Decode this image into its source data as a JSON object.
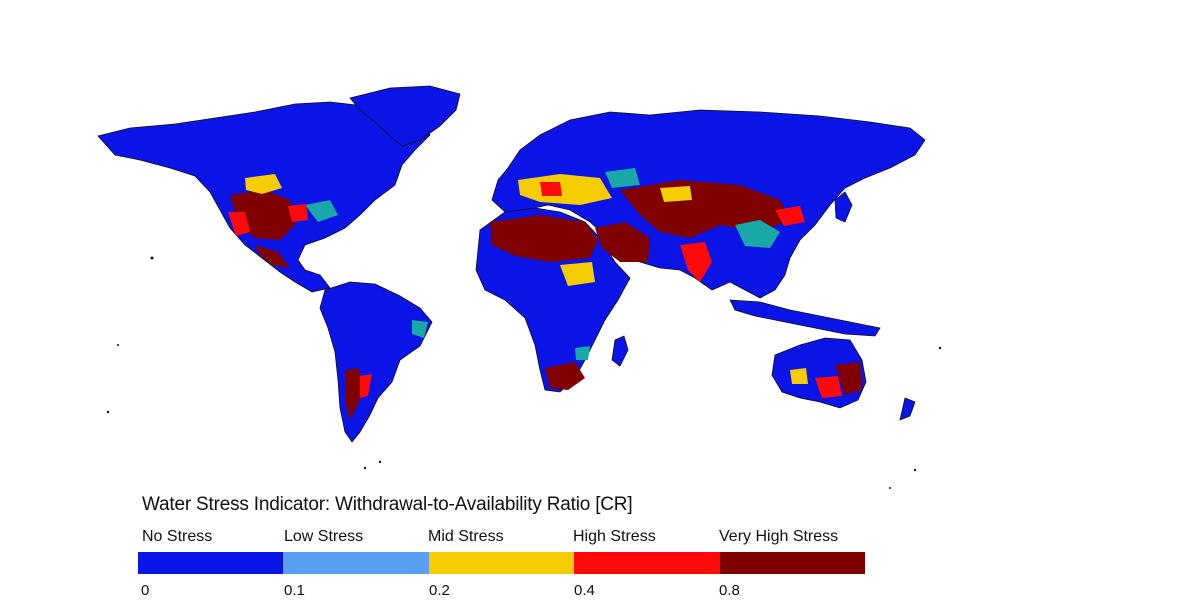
{
  "legend": {
    "title": "Water Stress Indicator: Withdrawal-to-Availability Ratio [CR]",
    "classes": [
      {
        "label": "No Stress",
        "color": "#0a14e6"
      },
      {
        "label": "Low Stress",
        "color": "#5aa0f0"
      },
      {
        "label": "Mid Stress",
        "color": "#f5cc00"
      },
      {
        "label": "High Stress",
        "color": "#ff0a0a"
      },
      {
        "label": "Very High Stress",
        "color": "#800000"
      }
    ],
    "ticks": [
      "0",
      "0.1",
      "0.2",
      "0.4",
      "0.8"
    ]
  },
  "map": {
    "ocean_color": "#ffffff",
    "teal_color": "#1aa7a7"
  }
}
